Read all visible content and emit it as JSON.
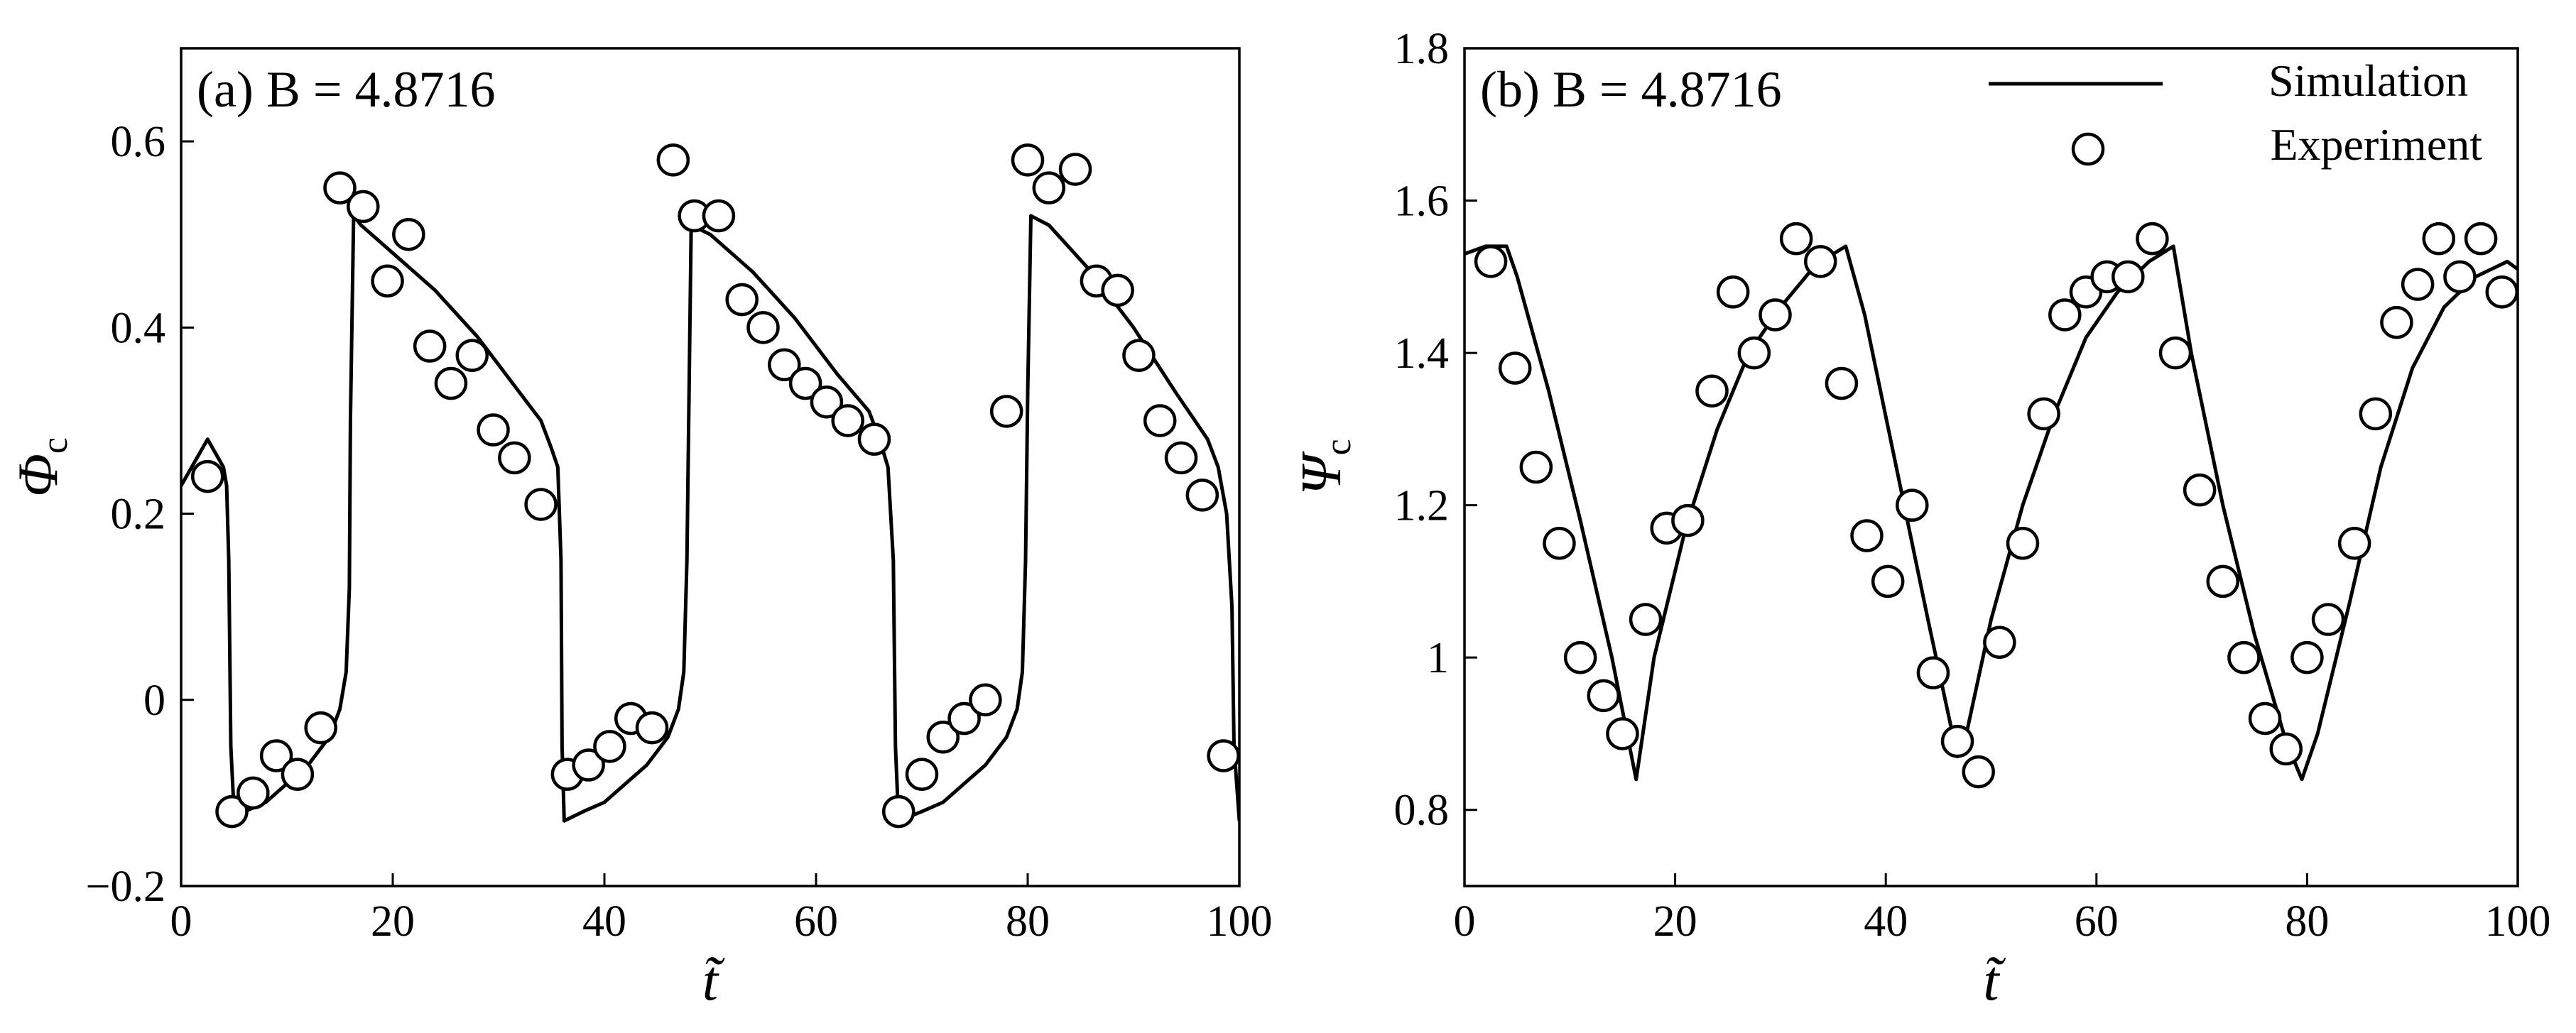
{
  "chart_data": [
    {
      "type": "line",
      "panel_label": "(a) B = 4.8716",
      "xlabel": "t̃",
      "ylabel_symbol": "Φ",
      "ylabel_sub": "c",
      "xlim": [
        0,
        100
      ],
      "ylim": [
        -0.2,
        0.7
      ],
      "xticks": [
        0,
        20,
        40,
        60,
        80,
        100
      ],
      "yticks": [
        -0.2,
        0,
        0.2,
        0.4,
        0.6
      ],
      "ytick_labels": [
        "−0.2",
        "0",
        "0.2",
        "0.4",
        "0.6"
      ],
      "series": [
        {
          "style": "line",
          "x": [
            0,
            1,
            2,
            2.5,
            3,
            4,
            4.3,
            4.5,
            4.7,
            5,
            6,
            8,
            10,
            12,
            14,
            15,
            15.6,
            15.9,
            16,
            16.3,
            17,
            20,
            24,
            28,
            32,
            34,
            35,
            35.6,
            35.9,
            36,
            36.2,
            38,
            40,
            42,
            44,
            46,
            47,
            47.5,
            47.8,
            48,
            48.2,
            50,
            54,
            58,
            62,
            65,
            66,
            66.8,
            67.3,
            67.5,
            67.8,
            70,
            72,
            74,
            76,
            78,
            79,
            79.5,
            79.8,
            80,
            80.3,
            82,
            86,
            90,
            94,
            97,
            98,
            98.8,
            99.3,
            99.5,
            100
          ],
          "y": [
            0.23,
            0.25,
            0.27,
            0.28,
            0.27,
            0.25,
            0.23,
            0.15,
            -0.05,
            -0.12,
            -0.12,
            -0.11,
            -0.09,
            -0.07,
            -0.04,
            -0.01,
            0.03,
            0.12,
            0.3,
            0.52,
            0.51,
            0.48,
            0.44,
            0.39,
            0.33,
            0.3,
            0.27,
            0.25,
            0.15,
            -0.05,
            -0.13,
            -0.12,
            -0.11,
            -0.09,
            -0.07,
            -0.04,
            -0.01,
            0.03,
            0.15,
            0.33,
            0.51,
            0.5,
            0.46,
            0.41,
            0.35,
            0.31,
            0.28,
            0.25,
            0.15,
            -0.05,
            -0.13,
            -0.12,
            -0.11,
            -0.09,
            -0.07,
            -0.04,
            -0.01,
            0.03,
            0.15,
            0.33,
            0.52,
            0.51,
            0.46,
            0.4,
            0.33,
            0.28,
            0.25,
            0.2,
            0.1,
            -0.05,
            -0.13
          ]
        },
        {
          "style": "marker",
          "x": [
            2.5,
            4.8,
            6.8,
            9,
            11,
            13.2,
            15,
            17.2,
            19.5,
            21.5,
            23.5,
            25.5,
            27.5,
            29.5,
            31.5,
            34,
            36.5,
            38.5,
            40.5,
            42.5,
            44.5,
            46.5,
            48.5,
            50.8,
            53,
            55,
            57,
            59,
            61,
            63,
            65.5,
            67.8,
            70,
            72,
            74,
            76,
            78,
            80,
            82,
            84.5,
            86.5,
            88.5,
            90.5,
            92.5,
            94.5,
            96.5,
            98.5
          ],
          "y": [
            0.24,
            -0.12,
            -0.1,
            -0.06,
            -0.08,
            -0.03,
            0.55,
            0.53,
            0.45,
            0.5,
            0.38,
            0.34,
            0.37,
            0.29,
            0.26,
            0.21,
            -0.08,
            -0.07,
            -0.05,
            -0.02,
            -0.03,
            0.58,
            0.52,
            0.52,
            0.43,
            0.4,
            0.36,
            0.34,
            0.32,
            0.3,
            0.28,
            -0.12,
            -0.08,
            -0.04,
            -0.02,
            0.0,
            0.31,
            0.58,
            0.55,
            0.57,
            0.45,
            0.44,
            0.37,
            0.3,
            0.26,
            0.22,
            -0.06
          ]
        }
      ]
    },
    {
      "type": "line",
      "panel_label": "(b) B = 4.8716",
      "xlabel": "t̃",
      "ylabel_symbol": "Ψ",
      "ylabel_sub": "c",
      "xlim": [
        0,
        100
      ],
      "ylim": [
        0.7,
        1.8
      ],
      "xticks": [
        0,
        20,
        40,
        60,
        80,
        100
      ],
      "yticks": [
        0.8,
        1,
        1.2,
        1.4,
        1.6,
        1.8
      ],
      "ytick_labels": [
        "0.8",
        "1",
        "1.2",
        "1.4",
        "1.6",
        "1.8"
      ],
      "legend": {
        "position": "top-right",
        "entries": [
          {
            "label": "Simulation",
            "style": "line"
          },
          {
            "label": "Experiment",
            "style": "marker"
          }
        ]
      },
      "series": [
        {
          "style": "line",
          "x": [
            0,
            2,
            4,
            5,
            8,
            11,
            14,
            16.3,
            18,
            21,
            24,
            27,
            30,
            33,
            35,
            36.2,
            38,
            41,
            44,
            46.8,
            47.5,
            50,
            53,
            56,
            59,
            62,
            65,
            67.3,
            69,
            72,
            75,
            78,
            79.5,
            81,
            84,
            87,
            90,
            93,
            96,
            99,
            100
          ],
          "y": [
            1.53,
            1.54,
            1.54,
            1.5,
            1.35,
            1.18,
            1.0,
            0.84,
            1.0,
            1.17,
            1.3,
            1.4,
            1.46,
            1.51,
            1.53,
            1.54,
            1.45,
            1.25,
            1.05,
            0.87,
            0.89,
            1.05,
            1.2,
            1.32,
            1.42,
            1.48,
            1.52,
            1.54,
            1.4,
            1.2,
            1.03,
            0.89,
            0.84,
            0.9,
            1.07,
            1.25,
            1.38,
            1.46,
            1.5,
            1.52,
            1.51
          ]
        },
        {
          "style": "marker",
          "x": [
            2.5,
            4.8,
            6.8,
            9,
            11,
            13.2,
            15,
            17.2,
            19.2,
            21.2,
            23.5,
            25.5,
            27.5,
            29.5,
            31.5,
            33.8,
            35.8,
            38.2,
            40.2,
            42.5,
            44.5,
            46.8,
            48.8,
            50.8,
            53,
            55,
            57,
            59,
            61,
            63,
            65.3,
            67.5,
            69.8,
            72,
            74,
            76,
            78,
            80,
            82,
            84.5,
            86.5,
            88.5,
            90.5,
            92.5,
            94.5,
            96.5,
            98.5
          ],
          "y": [
            1.52,
            1.38,
            1.25,
            1.15,
            1.0,
            0.95,
            0.9,
            1.05,
            1.17,
            1.18,
            1.35,
            1.48,
            1.4,
            1.45,
            1.55,
            1.52,
            1.36,
            1.16,
            1.1,
            1.2,
            0.98,
            0.89,
            0.85,
            1.02,
            1.15,
            1.32,
            1.45,
            1.48,
            1.5,
            1.5,
            1.55,
            1.4,
            1.22,
            1.1,
            1.0,
            0.92,
            0.88,
            1.0,
            1.05,
            1.15,
            1.32,
            1.44,
            1.49,
            1.55,
            1.5,
            1.55,
            1.48
          ]
        }
      ]
    }
  ]
}
